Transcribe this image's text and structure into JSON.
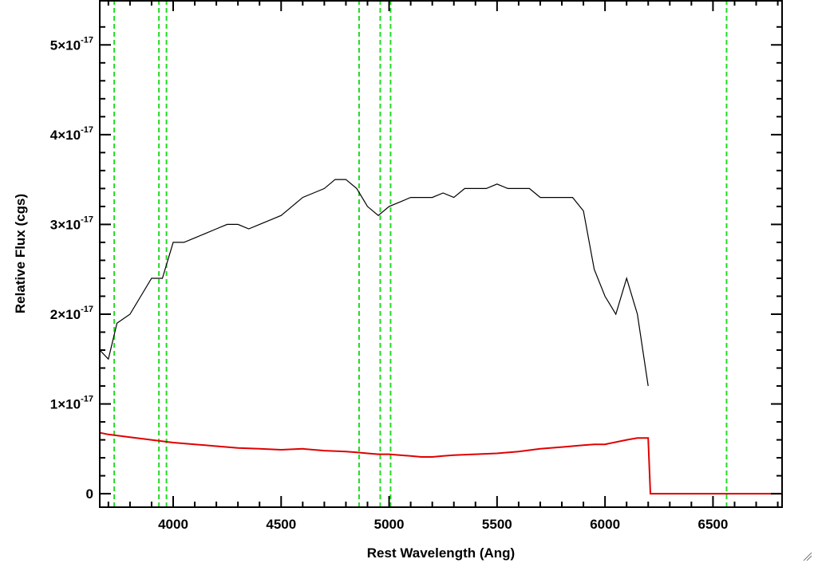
{
  "chart_data": {
    "type": "line",
    "xlabel": "Rest Wavelength (Ang)",
    "ylabel": "Relative Flux (cgs)",
    "xlim": [
      3660,
      6820
    ],
    "ylim": [
      -0.15,
      5.5
    ],
    "y_unit_exponent": -17,
    "x_ticks": [
      4000,
      4500,
      5000,
      5500,
      6000,
      6500
    ],
    "x_tick_labels": [
      "4000",
      "4500",
      "5000",
      "5500",
      "6000",
      "6500"
    ],
    "y_ticks": [
      0,
      1,
      2,
      3,
      4,
      5
    ],
    "y_tick_labels": [
      {
        "mantissa": "0",
        "exponent": ""
      },
      {
        "mantissa": "1×10",
        "exponent": "-17"
      },
      {
        "mantissa": "2×10",
        "exponent": "-17"
      },
      {
        "mantissa": "3×10",
        "exponent": "-17"
      },
      {
        "mantissa": "4×10",
        "exponent": "-17"
      },
      {
        "mantissa": "5×10",
        "exponent": "-17"
      }
    ],
    "grid": false,
    "reference_lines_x": [
      3727,
      3934,
      3969,
      4861,
      4959,
      5007,
      6563
    ],
    "series": [
      {
        "color": "#000000",
        "style": "solid",
        "x": [
          3660,
          3700,
          3740,
          3800,
          3850,
          3900,
          3950,
          4000,
          4050,
          4100,
          4150,
          4200,
          4250,
          4300,
          4350,
          4400,
          4450,
          4500,
          4550,
          4600,
          4650,
          4700,
          4750,
          4800,
          4850,
          4900,
          4950,
          5000,
          5050,
          5100,
          5150,
          5200,
          5250,
          5300,
          5350,
          5400,
          5450,
          5500,
          5550,
          5600,
          5650,
          5700,
          5750,
          5800,
          5850,
          5900,
          5950,
          6000,
          6050,
          6100,
          6150,
          6200
        ],
        "y": [
          1.6,
          1.5,
          1.9,
          2.0,
          2.2,
          2.4,
          2.4,
          2.8,
          2.8,
          2.85,
          2.9,
          2.95,
          3.0,
          3.0,
          2.95,
          3.0,
          3.05,
          3.1,
          3.2,
          3.3,
          3.35,
          3.4,
          3.5,
          3.5,
          3.4,
          3.2,
          3.1,
          3.2,
          3.25,
          3.3,
          3.3,
          3.3,
          3.35,
          3.3,
          3.4,
          3.4,
          3.4,
          3.45,
          3.4,
          3.4,
          3.4,
          3.3,
          3.3,
          3.3,
          3.3,
          3.15,
          2.5,
          2.2,
          2.0,
          2.4,
          2.0,
          1.2
        ]
      },
      {
        "color": "#e00000",
        "style": "solid",
        "x": [
          3660,
          3700,
          3800,
          3900,
          4000,
          4100,
          4200,
          4300,
          4400,
          4500,
          4600,
          4700,
          4800,
          4850,
          4900,
          4950,
          5000,
          5050,
          5100,
          5150,
          5200,
          5250,
          5300,
          5400,
          5500,
          5600,
          5700,
          5800,
          5900,
          5950,
          6000,
          6100,
          6150,
          6200,
          6210,
          6300,
          6500,
          6820
        ],
        "y": [
          0.68,
          0.66,
          0.63,
          0.6,
          0.57,
          0.55,
          0.53,
          0.51,
          0.5,
          0.49,
          0.5,
          0.48,
          0.47,
          0.46,
          0.45,
          0.44,
          0.44,
          0.43,
          0.42,
          0.41,
          0.41,
          0.42,
          0.43,
          0.44,
          0.45,
          0.47,
          0.5,
          0.52,
          0.54,
          0.55,
          0.55,
          0.6,
          0.62,
          0.62,
          0.0,
          0.0,
          0.0,
          0.0
        ]
      }
    ]
  }
}
